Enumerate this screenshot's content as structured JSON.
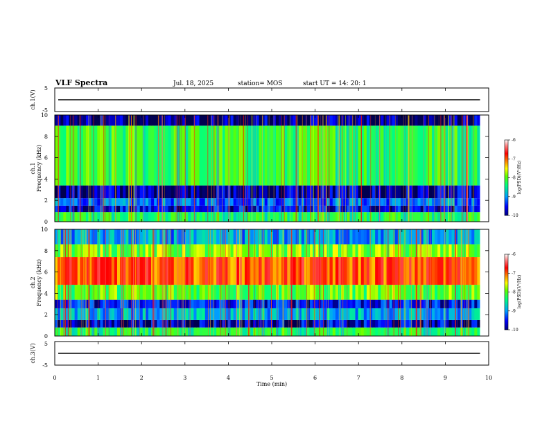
{
  "header": {
    "title": "VLF Spectra",
    "date": "Jul. 18, 2025",
    "station": "station= MOS",
    "start": "start UT =  14: 20: 1"
  },
  "colors": {
    "scale": [
      "#000080",
      "#0000ff",
      "#0080ff",
      "#00c0ff",
      "#00ffc0",
      "#40ff40",
      "#c0ff00",
      "#ffff00",
      "#ff8000",
      "#ff2000",
      "#ff6060",
      "#ffffff"
    ]
  },
  "chart_data": [
    {
      "type": "line",
      "panel": "ch1-waveform",
      "ylabel": "ch.1(V)",
      "ylim": [
        -5,
        5
      ],
      "yticks": [
        "5",
        "-5"
      ],
      "x": [
        0,
        2,
        4,
        6,
        8,
        9.8
      ],
      "series": [
        {
          "values": [
            0,
            0,
            0,
            0,
            0,
            0
          ]
        }
      ]
    },
    {
      "type": "heatmap",
      "panel": "ch1-spectrogram",
      "ylabel": "ch.1\nFrequency (kHz)",
      "ylim": [
        0,
        10
      ],
      "yticks": [
        "0",
        "2",
        "4",
        "6",
        "8",
        "10"
      ],
      "xlim": [
        0,
        10
      ],
      "data_end_min": 9.8,
      "colorbar": {
        "label": "log(PSD)(V²/Hz)",
        "range": [
          -10,
          -6
        ],
        "ticks": [
          "-6",
          "-7",
          "-8",
          "-9",
          "-10"
        ]
      },
      "bands": [
        {
          "f_low": 0.0,
          "f_high": 0.9,
          "level": -8.3
        },
        {
          "f_low": 0.9,
          "f_high": 1.5,
          "level": -9.6
        },
        {
          "f_low": 1.5,
          "f_high": 2.2,
          "level": -9.2
        },
        {
          "f_low": 2.2,
          "f_high": 3.4,
          "level": -9.8
        },
        {
          "f_low": 3.4,
          "f_high": 9.0,
          "level": -8.2
        },
        {
          "f_low": 9.0,
          "f_high": 10.0,
          "level": -9.9
        }
      ]
    },
    {
      "type": "heatmap",
      "panel": "ch2-spectrogram",
      "ylabel": "ch.2\nFrequency (kHz)",
      "ylim": [
        0,
        10
      ],
      "yticks": [
        "0",
        "2",
        "4",
        "6",
        "8",
        "10"
      ],
      "xlim": [
        0,
        10
      ],
      "data_end_min": 9.8,
      "colorbar": {
        "label": "log(PSD)(V²/Hz)",
        "range": [
          -10,
          -6
        ],
        "ticks": [
          "-6",
          "-7",
          "-8",
          "-9",
          "-10"
        ]
      },
      "bands": [
        {
          "f_low": 0.0,
          "f_high": 0.8,
          "level": -8.3
        },
        {
          "f_low": 0.8,
          "f_high": 1.5,
          "level": -9.7
        },
        {
          "f_low": 1.5,
          "f_high": 2.6,
          "level": -8.9
        },
        {
          "f_low": 2.6,
          "f_high": 3.4,
          "level": -9.5
        },
        {
          "f_low": 3.4,
          "f_high": 4.8,
          "level": -8.0
        },
        {
          "f_low": 4.8,
          "f_high": 7.4,
          "level": -6.9
        },
        {
          "f_low": 7.4,
          "f_high": 8.6,
          "level": -7.9
        },
        {
          "f_low": 8.6,
          "f_high": 10.0,
          "level": -9.0
        }
      ]
    },
    {
      "type": "line",
      "panel": "ch3-waveform",
      "ylabel": "ch.3(V)",
      "ylim": [
        -5,
        5
      ],
      "yticks": [
        "5",
        "-5"
      ],
      "x": [
        0,
        2,
        4,
        6,
        8,
        9.8
      ],
      "series": [
        {
          "values": [
            0,
            0,
            0,
            0,
            0,
            0
          ]
        }
      ]
    }
  ],
  "xaxis": {
    "label": "Time (min)",
    "ticks": [
      "0",
      "1",
      "2",
      "3",
      "4",
      "5",
      "6",
      "7",
      "8",
      "9",
      "10"
    ]
  }
}
